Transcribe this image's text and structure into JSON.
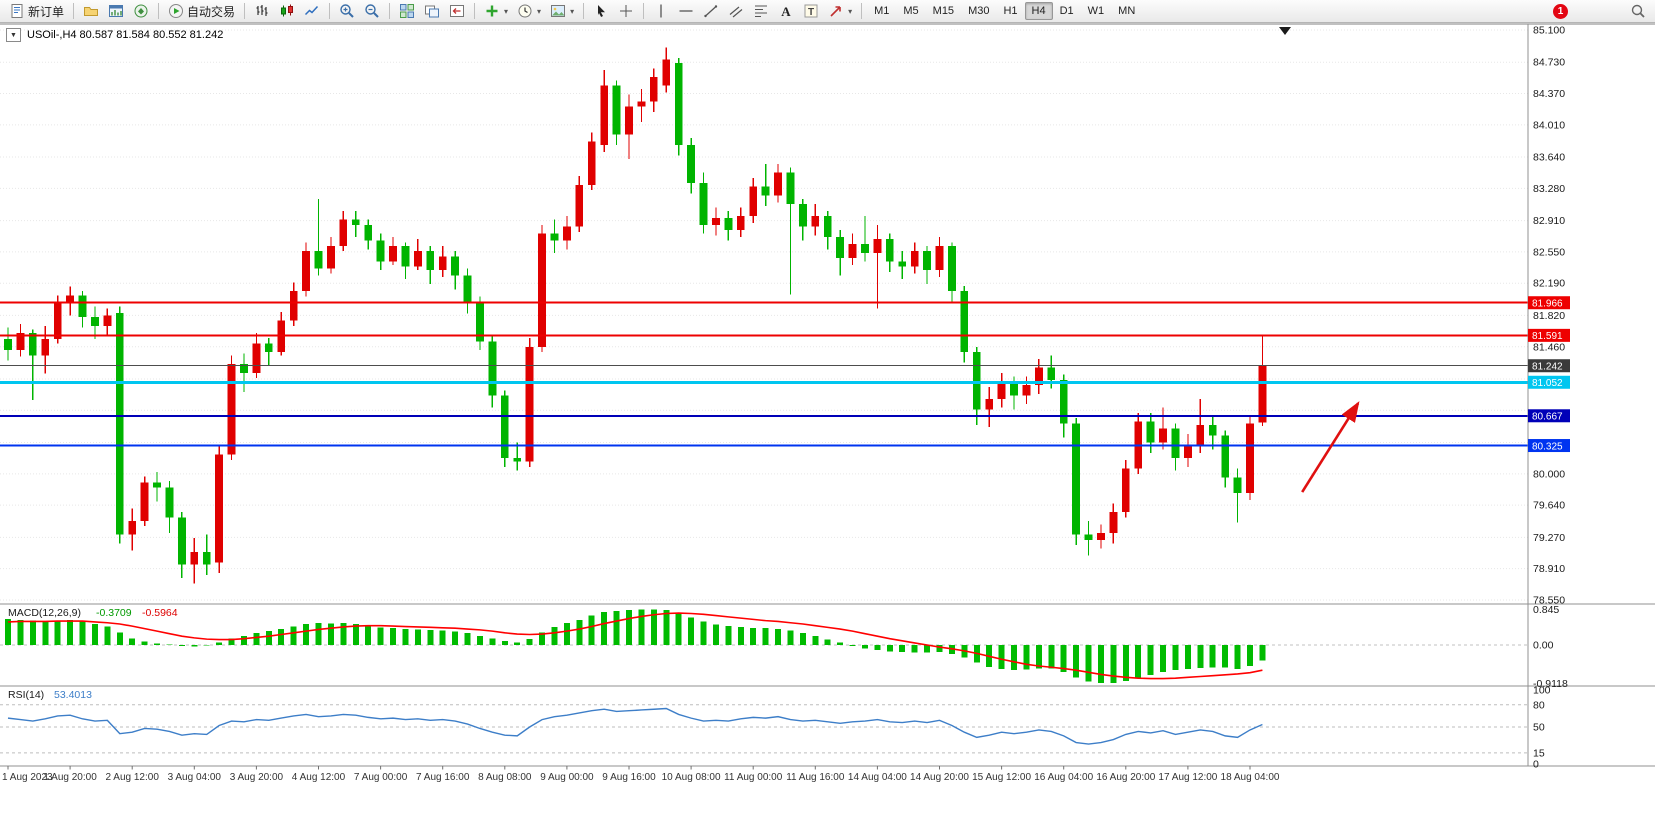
{
  "toolbar": {
    "new_order": {
      "label": "新订单"
    },
    "autotrade": {
      "label": "自动交易"
    },
    "icon_buttons_left": [
      {
        "name": "profiles-button",
        "icon": "folder"
      },
      {
        "name": "market-watch-button",
        "icon": "marketwatch"
      },
      {
        "name": "navigator-button",
        "icon": "navigator"
      }
    ],
    "chart_tools": [
      {
        "name": "bar-chart-button",
        "icon": "ohlc"
      },
      {
        "name": "candlestick-chart-button",
        "icon": "candles"
      },
      {
        "name": "line-chart-button",
        "icon": "linechart"
      },
      {
        "name": "zoom-in-button",
        "icon": "zoomin"
      },
      {
        "name": "zoom-out-button",
        "icon": "zoomout"
      },
      {
        "name": "tile-windows-button",
        "icon": "tile"
      },
      {
        "name": "auto-arrange-button",
        "icon": "arrange"
      },
      {
        "name": "chart-shift-button",
        "icon": "shift"
      },
      {
        "name": "indicators-button",
        "icon": "plus",
        "dropdown": true
      },
      {
        "name": "periods-button",
        "icon": "clock",
        "dropdown": true
      },
      {
        "name": "templates-button",
        "icon": "image",
        "dropdown": true
      }
    ],
    "draw_tools": [
      {
        "name": "cursor-button",
        "icon": "cursor"
      },
      {
        "name": "crosshair-button",
        "icon": "cross"
      },
      {
        "name": "vertical-line-button",
        "icon": "vline"
      },
      {
        "name": "horizontal-line-button",
        "icon": "hline"
      },
      {
        "name": "trendline-button",
        "icon": "tline"
      },
      {
        "name": "channel-button",
        "icon": "channel"
      },
      {
        "name": "fibonacci-button",
        "icon": "fibo"
      },
      {
        "name": "text-button",
        "icon": "textA"
      },
      {
        "name": "label-button",
        "icon": "textT"
      },
      {
        "name": "arrows-button",
        "icon": "arrowshape",
        "dropdown": true
      }
    ],
    "timeframes": [
      "M1",
      "M5",
      "M15",
      "M30",
      "H1",
      "H4",
      "D1",
      "W1",
      "MN"
    ],
    "active_timeframe": "H4",
    "notification_count": "1"
  },
  "chart": {
    "title": "USOil-,H4 80.587 81.584 80.552 81.242",
    "symbol": "USOil-",
    "timeframe": "H4",
    "open": "80.587",
    "high": "81.584",
    "low": "80.552",
    "close": "81.242"
  },
  "price_axis": {
    "max": 85.1,
    "min": 78.55,
    "visible_labels": [
      "85.100",
      "84.730",
      "84.370",
      "84.010",
      "83.640",
      "83.280",
      "82.910",
      "82.550",
      "82.190",
      "81.820",
      "81.460",
      "80.000",
      "79.640",
      "79.270",
      "78.910",
      "78.550"
    ],
    "grid_values": [
      85.1,
      84.73,
      84.37,
      84.01,
      83.64,
      83.28,
      82.91,
      82.55,
      82.19,
      81.82,
      81.46,
      81.09,
      80.73,
      80.36,
      80.0,
      79.64,
      79.27,
      78.91,
      78.55
    ]
  },
  "hlines": [
    {
      "name": "resistance-line-1",
      "label": "81.966",
      "value": 81.966,
      "color": "#ee0000",
      "width": 2
    },
    {
      "name": "resistance-line-2",
      "label": "81.591",
      "value": 81.591,
      "color": "#ee0000",
      "width": 2
    },
    {
      "name": "bid-price-line",
      "label": "81.242",
      "value": 81.242,
      "color": "#4d4d4d",
      "width": 1,
      "tag": "#3a3a3a"
    },
    {
      "name": "support-line-1",
      "label": "81.052",
      "value": 81.052,
      "color": "#00c6f0",
      "width": 3
    },
    {
      "name": "support-line-2",
      "label": "80.667",
      "value": 80.667,
      "color": "#0000b8",
      "width": 2
    },
    {
      "name": "support-line-3",
      "label": "80.325",
      "value": 80.325,
      "color": "#0034f0",
      "width": 2
    }
  ],
  "date_axis": [
    {
      "label": "1 Aug 2023",
      "bar": 0
    },
    {
      "label": "1 Aug 20:00",
      "bar": 5
    },
    {
      "label": "2 Aug 12:00",
      "bar": 10
    },
    {
      "label": "3 Aug 04:00",
      "bar": 15
    },
    {
      "label": "3 Aug 20:00",
      "bar": 20
    },
    {
      "label": "4 Aug 12:00",
      "bar": 25
    },
    {
      "label": "7 Aug 00:00",
      "bar": 30
    },
    {
      "label": "7 Aug 16:00",
      "bar": 35
    },
    {
      "label": "8 Aug 08:00",
      "bar": 40
    },
    {
      "label": "9 Aug 00:00",
      "bar": 45
    },
    {
      "label": "9 Aug 16:00",
      "bar": 50
    },
    {
      "label": "10 Aug 08:00",
      "bar": 55
    },
    {
      "label": "11 Aug 00:00",
      "bar": 60
    },
    {
      "label": "11 Aug 16:00",
      "bar": 65
    },
    {
      "label": "14 Aug 04:00",
      "bar": 70
    },
    {
      "label": "14 Aug 20:00",
      "bar": 75
    },
    {
      "label": "15 Aug 12:00",
      "bar": 80
    },
    {
      "label": "16 Aug 04:00",
      "bar": 85
    },
    {
      "label": "16 Aug 20:00",
      "bar": 90
    },
    {
      "label": "17 Aug 12:00",
      "bar": 95
    },
    {
      "label": "18 Aug 04:00",
      "bar": 100
    }
  ],
  "macd": {
    "label": "MACD(12,26,9)",
    "value_main": "-0.3709",
    "value_signal": "-0.5964",
    "axis_labels": [
      "0.845",
      "0.00",
      "-0.9118"
    ],
    "max": 0.845,
    "min": -0.9118,
    "histogram": [
      0.62,
      0.6,
      0.58,
      0.56,
      0.58,
      0.6,
      0.56,
      0.5,
      0.44,
      0.3,
      0.16,
      0.08,
      0.04,
      0.01,
      -0.02,
      -0.03,
      -0.01,
      0.06,
      0.15,
      0.21,
      0.28,
      0.33,
      0.38,
      0.44,
      0.5,
      0.52,
      0.51,
      0.52,
      0.5,
      0.46,
      0.42,
      0.4,
      0.38,
      0.37,
      0.36,
      0.34,
      0.32,
      0.28,
      0.22,
      0.15,
      0.09,
      0.06,
      0.14,
      0.3,
      0.43,
      0.52,
      0.6,
      0.7,
      0.79,
      0.81,
      0.83,
      0.85,
      0.85,
      0.83,
      0.76,
      0.66,
      0.56,
      0.49,
      0.45,
      0.43,
      0.41,
      0.4,
      0.38,
      0.34,
      0.28,
      0.21,
      0.13,
      0.06,
      -0.02,
      -0.08,
      -0.12,
      -0.15,
      -0.17,
      -0.18,
      -0.18,
      -0.17,
      -0.21,
      -0.3,
      -0.42,
      -0.52,
      -0.57,
      -0.59,
      -0.58,
      -0.56,
      -0.56,
      -0.64,
      -0.77,
      -0.87,
      -0.91,
      -0.9,
      -0.86,
      -0.79,
      -0.71,
      -0.64,
      -0.6,
      -0.57,
      -0.55,
      -0.53,
      -0.54,
      -0.57,
      -0.5,
      -0.37
    ],
    "signal": [
      0.55,
      0.56,
      0.56,
      0.56,
      0.57,
      0.57,
      0.57,
      0.55,
      0.53,
      0.5,
      0.45,
      0.39,
      0.33,
      0.27,
      0.21,
      0.17,
      0.14,
      0.13,
      0.13,
      0.15,
      0.18,
      0.21,
      0.25,
      0.29,
      0.33,
      0.37,
      0.4,
      0.43,
      0.45,
      0.46,
      0.46,
      0.45,
      0.44,
      0.43,
      0.42,
      0.41,
      0.4,
      0.38,
      0.36,
      0.33,
      0.29,
      0.26,
      0.25,
      0.26,
      0.29,
      0.33,
      0.38,
      0.44,
      0.51,
      0.57,
      0.63,
      0.68,
      0.72,
      0.75,
      0.76,
      0.75,
      0.73,
      0.7,
      0.67,
      0.64,
      0.61,
      0.58,
      0.56,
      0.53,
      0.5,
      0.46,
      0.42,
      0.38,
      0.33,
      0.27,
      0.21,
      0.15,
      0.1,
      0.05,
      0.0,
      -0.05,
      -0.09,
      -0.14,
      -0.2,
      -0.27,
      -0.34,
      -0.4,
      -0.46,
      -0.5,
      -0.53,
      -0.56,
      -0.6,
      -0.65,
      -0.7,
      -0.74,
      -0.77,
      -0.79,
      -0.8,
      -0.8,
      -0.79,
      -0.77,
      -0.75,
      -0.73,
      -0.71,
      -0.69,
      -0.66,
      -0.6
    ]
  },
  "rsi": {
    "label": "RSI(14)",
    "value": "53.4013",
    "axis_labels": [
      "100",
      "80",
      "50",
      "15",
      "0"
    ],
    "levels": [
      80,
      50,
      15
    ],
    "values": [
      62,
      60,
      58,
      61,
      65,
      66,
      61,
      58,
      59,
      41,
      43,
      48,
      47,
      44,
      39,
      41,
      40,
      52,
      58,
      57,
      60,
      59,
      62,
      65,
      67,
      64,
      65,
      67,
      66,
      63,
      61,
      62,
      60,
      61,
      59,
      60,
      58,
      54,
      48,
      43,
      39,
      38,
      50,
      60,
      64,
      66,
      69,
      72,
      74,
      71,
      72,
      73,
      74,
      75,
      67,
      62,
      58,
      59,
      58,
      61,
      63,
      62,
      64,
      60,
      58,
      59,
      57,
      55,
      57,
      58,
      60,
      57,
      56,
      58,
      56,
      59,
      52,
      43,
      36,
      39,
      43,
      41,
      43,
      46,
      44,
      38,
      29,
      27,
      29,
      33,
      40,
      44,
      42,
      45,
      40,
      43,
      46,
      44,
      38,
      36,
      46,
      53.4
    ]
  },
  "annotations": {
    "arrow": {
      "name": "trend-arrow",
      "color": "#e01010",
      "x1_bar": 104.2,
      "y1_price": 79.79,
      "x2_bar": 108.7,
      "y2_price": 80.81
    }
  },
  "chart_data": {
    "type": "candlestick",
    "symbol": "USOil-",
    "timeframe": "H4",
    "ylim": [
      78.55,
      85.1
    ],
    "up_color": "#e00000",
    "down_color": "#00b400",
    "candles_ohlc": [
      [
        81.55,
        81.68,
        81.3,
        81.42
      ],
      [
        81.42,
        81.72,
        81.35,
        81.62
      ],
      [
        81.62,
        81.66,
        80.85,
        81.36
      ],
      [
        81.36,
        81.7,
        81.15,
        81.55
      ],
      [
        81.55,
        82.05,
        81.5,
        81.96
      ],
      [
        81.96,
        82.15,
        81.82,
        82.05
      ],
      [
        82.05,
        82.1,
        81.68,
        81.8
      ],
      [
        81.8,
        81.92,
        81.55,
        81.7
      ],
      [
        81.7,
        81.9,
        81.6,
        81.82
      ],
      [
        81.85,
        81.92,
        79.2,
        79.3
      ],
      [
        79.3,
        79.6,
        79.12,
        79.46
      ],
      [
        79.46,
        79.97,
        79.4,
        79.9
      ],
      [
        79.9,
        80.02,
        79.68,
        79.84
      ],
      [
        79.84,
        79.92,
        79.32,
        79.5
      ],
      [
        79.5,
        79.56,
        78.8,
        78.96
      ],
      [
        78.96,
        79.26,
        78.74,
        79.1
      ],
      [
        79.1,
        79.3,
        78.84,
        78.96
      ],
      [
        78.98,
        80.32,
        78.86,
        80.22
      ],
      [
        80.22,
        81.36,
        80.16,
        81.26
      ],
      [
        81.26,
        81.38,
        80.94,
        81.16
      ],
      [
        81.16,
        81.62,
        81.1,
        81.5
      ],
      [
        81.5,
        81.56,
        81.24,
        81.4
      ],
      [
        81.4,
        81.86,
        81.36,
        81.76
      ],
      [
        81.76,
        82.2,
        81.7,
        82.1
      ],
      [
        82.1,
        82.66,
        82.04,
        82.56
      ],
      [
        82.56,
        83.16,
        82.28,
        82.36
      ],
      [
        82.36,
        82.72,
        82.3,
        82.62
      ],
      [
        82.62,
        83.02,
        82.56,
        82.92
      ],
      [
        82.92,
        83.02,
        82.72,
        82.86
      ],
      [
        82.86,
        82.92,
        82.58,
        82.68
      ],
      [
        82.68,
        82.76,
        82.34,
        82.44
      ],
      [
        82.44,
        82.72,
        82.4,
        82.62
      ],
      [
        82.62,
        82.66,
        82.24,
        82.38
      ],
      [
        82.38,
        82.7,
        82.34,
        82.56
      ],
      [
        82.56,
        82.62,
        82.18,
        82.34
      ],
      [
        82.34,
        82.62,
        82.26,
        82.5
      ],
      [
        82.5,
        82.56,
        82.12,
        82.28
      ],
      [
        82.28,
        82.36,
        81.84,
        81.96
      ],
      [
        81.96,
        82.04,
        81.42,
        81.52
      ],
      [
        81.52,
        81.58,
        80.76,
        80.9
      ],
      [
        80.9,
        80.96,
        80.08,
        80.18
      ],
      [
        80.18,
        80.36,
        80.04,
        80.14
      ],
      [
        80.14,
        81.56,
        80.08,
        81.46
      ],
      [
        81.46,
        82.86,
        81.4,
        82.76
      ],
      [
        82.76,
        82.92,
        82.54,
        82.68
      ],
      [
        82.68,
        82.96,
        82.58,
        82.84
      ],
      [
        82.84,
        83.42,
        82.78,
        83.32
      ],
      [
        83.32,
        83.92,
        83.26,
        83.82
      ],
      [
        83.78,
        84.64,
        83.7,
        84.46
      ],
      [
        84.46,
        84.52,
        83.78,
        83.9
      ],
      [
        83.9,
        84.36,
        83.62,
        84.22
      ],
      [
        84.22,
        84.42,
        84.04,
        84.28
      ],
      [
        84.28,
        84.66,
        84.16,
        84.56
      ],
      [
        84.46,
        84.9,
        84.38,
        84.76
      ],
      [
        84.72,
        84.78,
        83.66,
        83.78
      ],
      [
        83.78,
        83.86,
        83.22,
        83.34
      ],
      [
        83.34,
        83.46,
        82.76,
        82.86
      ],
      [
        82.86,
        83.06,
        82.74,
        82.94
      ],
      [
        82.94,
        83.02,
        82.68,
        82.8
      ],
      [
        82.8,
        83.06,
        82.72,
        82.96
      ],
      [
        82.96,
        83.4,
        82.88,
        83.3
      ],
      [
        83.3,
        83.56,
        83.08,
        83.2
      ],
      [
        83.2,
        83.56,
        83.12,
        83.46
      ],
      [
        83.46,
        83.52,
        82.06,
        83.1
      ],
      [
        83.1,
        83.16,
        82.68,
        82.84
      ],
      [
        82.84,
        83.1,
        82.74,
        82.96
      ],
      [
        82.96,
        83.02,
        82.58,
        82.72
      ],
      [
        82.72,
        82.8,
        82.28,
        82.48
      ],
      [
        82.48,
        82.76,
        82.4,
        82.64
      ],
      [
        82.64,
        82.96,
        82.44,
        82.54
      ],
      [
        82.54,
        82.86,
        81.9,
        82.7
      ],
      [
        82.7,
        82.76,
        82.32,
        82.44
      ],
      [
        82.44,
        82.56,
        82.24,
        82.38
      ],
      [
        82.38,
        82.66,
        82.3,
        82.56
      ],
      [
        82.56,
        82.62,
        82.18,
        82.34
      ],
      [
        82.34,
        82.72,
        82.26,
        82.62
      ],
      [
        82.62,
        82.66,
        81.98,
        82.1
      ],
      [
        82.1,
        82.16,
        81.28,
        81.4
      ],
      [
        81.4,
        81.46,
        80.56,
        80.74
      ],
      [
        80.74,
        81.0,
        80.54,
        80.86
      ],
      [
        80.86,
        81.16,
        80.76,
        81.06
      ],
      [
        81.06,
        81.12,
        80.74,
        80.9
      ],
      [
        80.9,
        81.12,
        80.8,
        81.02
      ],
      [
        81.02,
        81.32,
        80.92,
        81.22
      ],
      [
        81.22,
        81.36,
        80.98,
        81.08
      ],
      [
        81.08,
        81.14,
        80.42,
        80.58
      ],
      [
        80.58,
        80.64,
        79.18,
        79.3
      ],
      [
        79.3,
        79.46,
        79.06,
        79.24
      ],
      [
        79.24,
        79.42,
        79.14,
        79.32
      ],
      [
        79.32,
        79.66,
        79.2,
        79.56
      ],
      [
        79.56,
        80.16,
        79.5,
        80.06
      ],
      [
        80.06,
        80.7,
        80.0,
        80.6
      ],
      [
        80.6,
        80.7,
        80.24,
        80.36
      ],
      [
        80.36,
        80.76,
        80.28,
        80.52
      ],
      [
        80.52,
        80.58,
        80.04,
        80.18
      ],
      [
        80.18,
        80.46,
        80.08,
        80.32
      ],
      [
        80.32,
        80.86,
        80.24,
        80.56
      ],
      [
        80.56,
        80.66,
        80.28,
        80.44
      ],
      [
        80.44,
        80.5,
        79.84,
        79.96
      ],
      [
        79.96,
        80.06,
        79.44,
        79.78
      ],
      [
        79.78,
        80.66,
        79.7,
        80.58
      ],
      [
        80.587,
        81.584,
        80.552,
        81.242
      ]
    ]
  }
}
